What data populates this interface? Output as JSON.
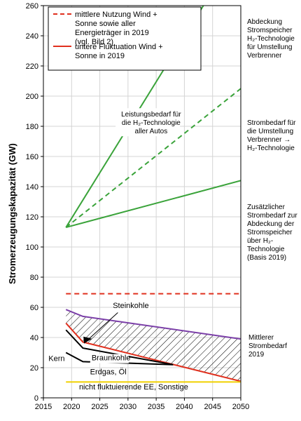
{
  "chart_data": {
    "type": "line",
    "ylabel": "Stromerzeugungskapazität (GW)",
    "xlim": [
      2015,
      2050
    ],
    "ylim": [
      0,
      260
    ],
    "xticks": [
      2015,
      2020,
      2025,
      2030,
      2035,
      2040,
      2045,
      2050
    ],
    "yticks": [
      0,
      20,
      40,
      60,
      80,
      100,
      120,
      140,
      160,
      180,
      200,
      220,
      240,
      260
    ],
    "grid": true,
    "legend_position": "top-left",
    "legend": [
      {
        "label": "mittlere Nutzung Wind + Sonne sowie aller Energieträger in 2019 (vgl. Bild 2)",
        "style": "dashed",
        "color": "#e0301e"
      },
      {
        "label": "untere Fluktuation Wind + Sonne in 2019",
        "style": "solid",
        "color": "#e0301e"
      }
    ],
    "series": [
      {
        "name": "mittlere Nutzung Wind + Sonne sowie aller Energieträger in 2019 (vgl. Bild 2)",
        "color": "#e0301e",
        "style": "dashed",
        "x": [
          2019,
          2050
        ],
        "y": [
          69,
          69
        ]
      },
      {
        "color": "#3aa33a",
        "style": "solid",
        "x": [
          2019,
          2050
        ],
        "y": [
          113,
          300
        ]
      },
      {
        "color": "#3aa33a",
        "style": "dashed",
        "x": [
          2019,
          2050
        ],
        "y": [
          113,
          205
        ]
      },
      {
        "color": "#3aa33a",
        "style": "solid",
        "x": [
          2019,
          2050
        ],
        "y": [
          113,
          144
        ]
      },
      {
        "color": "#7b3fa8",
        "style": "solid",
        "x": [
          2019,
          2022,
          2050
        ],
        "y": [
          58.5,
          54,
          39
        ]
      },
      {
        "name": "untere Fluktuation Wind + Sonne in 2019",
        "color": "#e0301e",
        "style": "solid",
        "x": [
          2019,
          2022,
          2050
        ],
        "y": [
          49.5,
          37,
          11
        ]
      },
      {
        "color": "#000000",
        "style": "solid",
        "x": [
          2019,
          2022,
          2038
        ],
        "y": [
          45,
          33,
          22
        ]
      },
      {
        "color": "#000000",
        "style": "solid",
        "x": [
          2019,
          2022,
          2038
        ],
        "y": [
          30,
          24,
          22
        ]
      },
      {
        "color": "#f0d000",
        "style": "solid",
        "x": [
          2019,
          2050
        ],
        "y": [
          10.5,
          10.5
        ]
      }
    ],
    "hatched_area": {
      "upper": [
        [
          2019,
          58.5
        ],
        [
          2022,
          54
        ],
        [
          2050,
          39
        ]
      ],
      "lower": [
        [
          2019,
          49.5
        ],
        [
          2022,
          37
        ],
        [
          2050,
          11
        ]
      ]
    },
    "annotations": [
      {
        "text": "Leistungsbedarf für die H₂-Technologie aller Autos",
        "x": 2034,
        "y": 178
      },
      {
        "text": "Steinkohle",
        "x": 2030.5,
        "y": 59.5
      },
      {
        "text": "Braunkohle",
        "x": 2027,
        "y": 25
      },
      {
        "text": "Kern",
        "x": 2015.9,
        "y": 24.5
      },
      {
        "text": "Erdgas, Öl",
        "x": 2026.5,
        "y": 15.5
      },
      {
        "text": "nicht fluktuierende EE, Sonstige",
        "x": 2031,
        "y": 5.5
      }
    ]
  },
  "side_notes": [
    "Abdeckung\nStromspeicher\nH₂-Technologie\nfür Umstellung\nVerbrenner",
    "Strombedarf für\ndie Umstellung\nVerbrenner →\nH₂-Technologie",
    "Zusätzlicher\nStrombedarf zur\nAbdeckung der\nStromspeicher\nüber H₂-\nTechnologie\n(Basis 2019)",
    "Mittlerer\nStrombedarf\n2019"
  ]
}
